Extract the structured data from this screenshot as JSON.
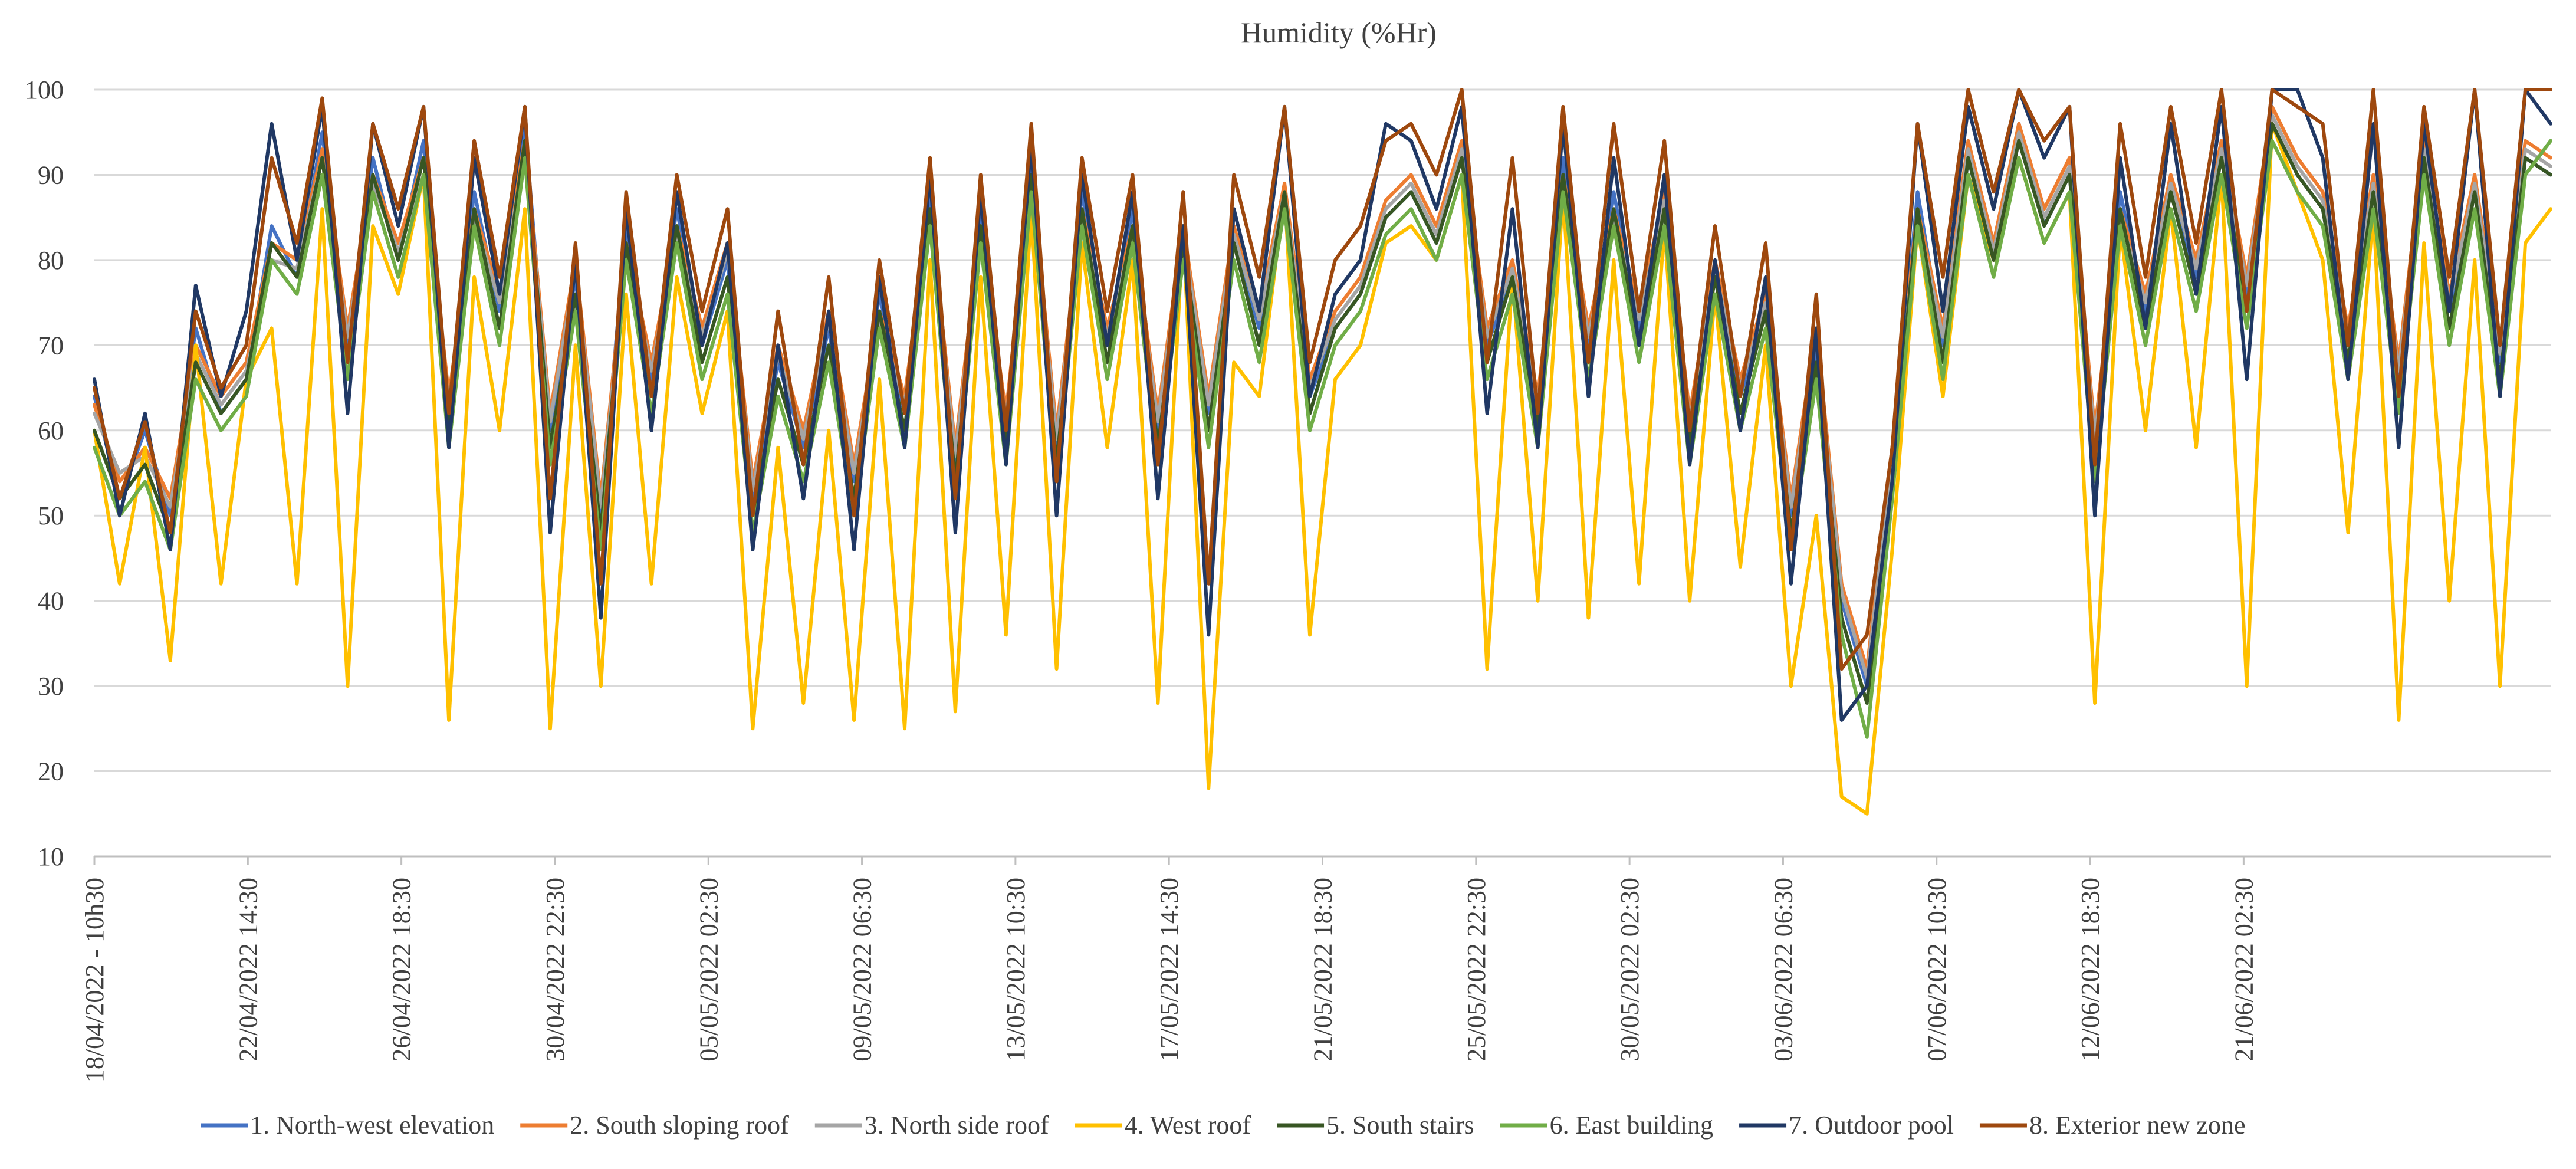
{
  "chart_data": {
    "type": "line",
    "title": "Humidity (%Hr)",
    "xlabel": "",
    "ylabel": "",
    "ylim": [
      10,
      100
    ],
    "yticks": [
      10,
      20,
      30,
      40,
      50,
      60,
      70,
      80,
      90,
      100
    ],
    "grid": true,
    "legend": "bottom",
    "x_range": [
      0,
      64
    ],
    "x_ticks": [
      {
        "label": "18/04/2022 - 10h30",
        "x": 0
      },
      {
        "label": "22/04/2022 14:30",
        "x": 4
      },
      {
        "label": "26/04/2022 18:30",
        "x": 8
      },
      {
        "label": "30/04/2022 22:30",
        "x": 12
      },
      {
        "label": "05/05/2022 02:30",
        "x": 16
      },
      {
        "label": "09/05/2022 06:30",
        "x": 20
      },
      {
        "label": "13/05/2022 10:30",
        "x": 24
      },
      {
        "label": "17/05/2022 14:30",
        "x": 28
      },
      {
        "label": "21/05/2022 18:30",
        "x": 32
      },
      {
        "label": "25/05/2022 22:30",
        "x": 36
      },
      {
        "label": "30/05/2022 02:30",
        "x": 40
      },
      {
        "label": "03/06/2022 06:30",
        "x": 44
      },
      {
        "label": "07/06/2022 10:30",
        "x": 48
      },
      {
        "label": "12/06/2022 18:30",
        "x": 52
      },
      {
        "label": "21/06/2022 02:30",
        "x": 56
      }
    ],
    "series": [
      {
        "name": "1. North-west elevation",
        "color": "#4472c4",
        "values": [
          64,
          52,
          60,
          50,
          72,
          62,
          66,
          84,
          78,
          95,
          70,
          92,
          80,
          94,
          62,
          88,
          74,
          96,
          60,
          78,
          50,
          84,
          66,
          86,
          70,
          80,
          52,
          68,
          58,
          72,
          54,
          76,
          62,
          88,
          56,
          86,
          60,
          92,
          58,
          88,
          70,
          86,
          60,
          82,
          62,
          82,
          72,
          87,
          64,
          72,
          76,
          85,
          88,
          82,
          92,
          70,
          78,
          62,
          92,
          70,
          88,
          72,
          86,
          60,
          78,
          64,
          74,
          50,
          70,
          40,
          30,
          55,
          88,
          70,
          92,
          80,
          96,
          84,
          90,
          58,
          88,
          74,
          88,
          78,
          92,
          76,
          96,
          90,
          86,
          70,
          88,
          66,
          92,
          74,
          88,
          68,
          92,
          90
        ]
      },
      {
        "name": "2. South sloping roof",
        "color": "#ed7d31",
        "values": [
          63,
          54,
          58,
          52,
          70,
          64,
          68,
          82,
          80,
          93,
          72,
          90,
          82,
          92,
          64,
          86,
          76,
          94,
          62,
          80,
          52,
          82,
          68,
          84,
          72,
          82,
          54,
          70,
          60,
          74,
          56,
          74,
          64,
          86,
          58,
          84,
          62,
          90,
          60,
          86,
          72,
          84,
          62,
          84,
          64,
          84,
          74,
          89,
          66,
          74,
          78,
          87,
          90,
          84,
          94,
          72,
          80,
          64,
          90,
          72,
          86,
          74,
          88,
          62,
          80,
          66,
          76,
          52,
          72,
          42,
          32,
          58,
          86,
          72,
          94,
          82,
          96,
          86,
          92,
          60,
          86,
          76,
          90,
          80,
          94,
          78,
          98,
          92,
          88,
          72,
          90,
          68,
          94,
          76,
          90,
          70,
          94,
          92
        ]
      },
      {
        "name": "3. North side roof",
        "color": "#a5a5a5",
        "values": [
          62,
          55,
          57,
          51,
          69,
          63,
          67,
          80,
          79,
          92,
          71,
          89,
          81,
          90,
          63,
          85,
          75,
          93,
          61,
          79,
          51,
          81,
          67,
          83,
          71,
          81,
          53,
          69,
          59,
          73,
          55,
          73,
          63,
          85,
          57,
          83,
          61,
          89,
          59,
          85,
          71,
          83,
          61,
          83,
          63,
          83,
          73,
          88,
          65,
          73,
          77,
          86,
          89,
          83,
          93,
          71,
          79,
          63,
          89,
          71,
          85,
          73,
          87,
          61,
          79,
          65,
          75,
          51,
          71,
          41,
          31,
          57,
          85,
          71,
          93,
          81,
          95,
          85,
          91,
          59,
          85,
          75,
          89,
          79,
          93,
          77,
          97,
          91,
          87,
          71,
          89,
          67,
          93,
          75,
          89,
          69,
          93,
          91
        ]
      },
      {
        "name": "4. West roof",
        "color": "#ffc000",
        "values": [
          60,
          42,
          58,
          33,
          70,
          42,
          66,
          72,
          42,
          86,
          30,
          84,
          76,
          90,
          26,
          78,
          60,
          86,
          25,
          70,
          30,
          76,
          42,
          78,
          62,
          74,
          25,
          58,
          28,
          60,
          26,
          66,
          25,
          80,
          27,
          78,
          36,
          86,
          32,
          82,
          58,
          80,
          28,
          84,
          18,
          68,
          64,
          88,
          36,
          66,
          70,
          82,
          84,
          80,
          90,
          32,
          78,
          40,
          88,
          38,
          80,
          42,
          84,
          40,
          76,
          44,
          70,
          30,
          50,
          17,
          15,
          46,
          84,
          64,
          90,
          80,
          92,
          82,
          88,
          28,
          84,
          60,
          86,
          58,
          90,
          30,
          96,
          88,
          80,
          48,
          86,
          26,
          82,
          40,
          80,
          30,
          82,
          86
        ]
      },
      {
        "name": "5. South stairs",
        "color": "#375623",
        "values": [
          60,
          52,
          56,
          48,
          68,
          62,
          66,
          82,
          78,
          92,
          68,
          90,
          80,
          92,
          60,
          86,
          72,
          94,
          58,
          76,
          48,
          82,
          64,
          84,
          68,
          78,
          50,
          66,
          56,
          70,
          52,
          74,
          60,
          86,
          54,
          84,
          58,
          90,
          56,
          86,
          68,
          84,
          58,
          82,
          60,
          82,
          70,
          88,
          62,
          72,
          76,
          85,
          88,
          82,
          92,
          68,
          78,
          60,
          90,
          68,
          86,
          70,
          86,
          58,
          78,
          62,
          74,
          48,
          68,
          38,
          28,
          54,
          86,
          68,
          92,
          80,
          94,
          84,
          90,
          56,
          86,
          72,
          88,
          76,
          92,
          74,
          96,
          90,
          86,
          68,
          88,
          64,
          92,
          72,
          88,
          66,
          92,
          90
        ]
      },
      {
        "name": "6. East building",
        "color": "#70ad47",
        "values": [
          58,
          50,
          54,
          46,
          66,
          60,
          64,
          80,
          76,
          90,
          66,
          88,
          78,
          90,
          58,
          84,
          70,
          92,
          56,
          74,
          46,
          80,
          62,
          82,
          66,
          76,
          48,
          64,
          54,
          68,
          50,
          72,
          58,
          84,
          52,
          82,
          56,
          88,
          54,
          84,
          66,
          82,
          56,
          80,
          58,
          80,
          68,
          86,
          60,
          70,
          74,
          83,
          86,
          80,
          90,
          66,
          76,
          58,
          88,
          66,
          84,
          68,
          84,
          56,
          76,
          60,
          72,
          46,
          66,
          36,
          24,
          52,
          84,
          66,
          90,
          78,
          92,
          82,
          88,
          54,
          84,
          70,
          86,
          74,
          90,
          72,
          94,
          88,
          84,
          66,
          86,
          62,
          90,
          70,
          86,
          64,
          90,
          94
        ]
      },
      {
        "name": "7. Outdoor pool",
        "color": "#203864",
        "values": [
          66,
          50,
          62,
          46,
          77,
          64,
          74,
          96,
          80,
          98,
          62,
          96,
          84,
          98,
          58,
          92,
          76,
          98,
          48,
          80,
          38,
          86,
          60,
          88,
          70,
          82,
          46,
          70,
          52,
          74,
          46,
          78,
          58,
          90,
          48,
          88,
          56,
          94,
          50,
          90,
          70,
          88,
          52,
          84,
          36,
          86,
          74,
          98,
          64,
          76,
          80,
          96,
          94,
          86,
          98,
          62,
          86,
          58,
          96,
          64,
          92,
          70,
          90,
          56,
          80,
          60,
          78,
          42,
          72,
          26,
          30,
          54,
          96,
          74,
          98,
          86,
          100,
          92,
          98,
          50,
          92,
          72,
          96,
          76,
          98,
          66,
          100,
          100,
          92,
          66,
          96,
          58,
          96,
          74,
          100,
          64,
          100,
          96
        ]
      },
      {
        "name": "8. Exterior new zone",
        "color": "#9e480e",
        "values": [
          65,
          52,
          61,
          48,
          74,
          65,
          70,
          92,
          82,
          99,
          68,
          96,
          86,
          98,
          62,
          94,
          78,
          98,
          52,
          82,
          42,
          88,
          64,
          90,
          74,
          86,
          50,
          74,
          56,
          78,
          50,
          80,
          62,
          92,
          52,
          90,
          60,
          96,
          54,
          92,
          74,
          90,
          56,
          88,
          42,
          90,
          78,
          98,
          68,
          80,
          84,
          94,
          96,
          90,
          100,
          68,
          92,
          62,
          98,
          68,
          96,
          74,
          94,
          60,
          84,
          64,
          82,
          46,
          76,
          32,
          36,
          58,
          96,
          78,
          100,
          88,
          100,
          94,
          98,
          56,
          96,
          78,
          98,
          82,
          100,
          74,
          100,
          98,
          96,
          70,
          100,
          64,
          98,
          78,
          100,
          70,
          100,
          100
        ]
      }
    ]
  }
}
